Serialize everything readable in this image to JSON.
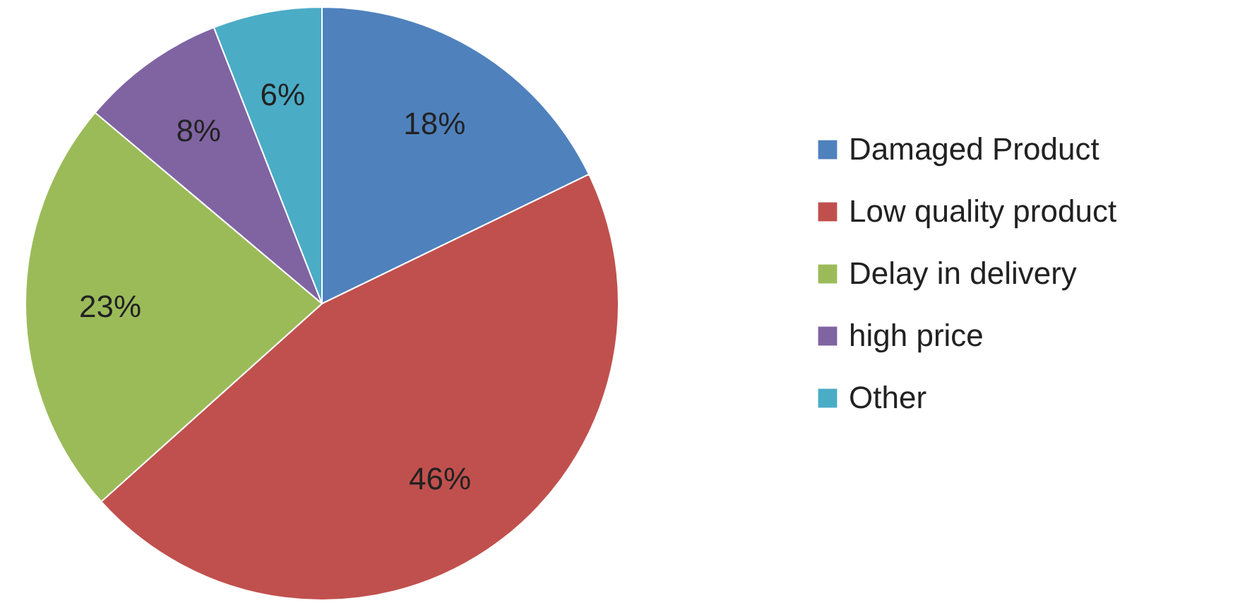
{
  "chart_data": {
    "type": "pie",
    "categories": [
      "Damaged Product",
      "Low quality product",
      "Delay in delivery",
      "high price",
      "Other"
    ],
    "values": [
      18,
      46,
      23,
      8,
      6
    ],
    "colors": [
      "#4f81bd",
      "#c0504d",
      "#9bbb59",
      "#8064a2",
      "#4bacc6"
    ],
    "value_labels": [
      "18%",
      "46%",
      "23%",
      "8%",
      "6%"
    ],
    "legend": "right"
  }
}
